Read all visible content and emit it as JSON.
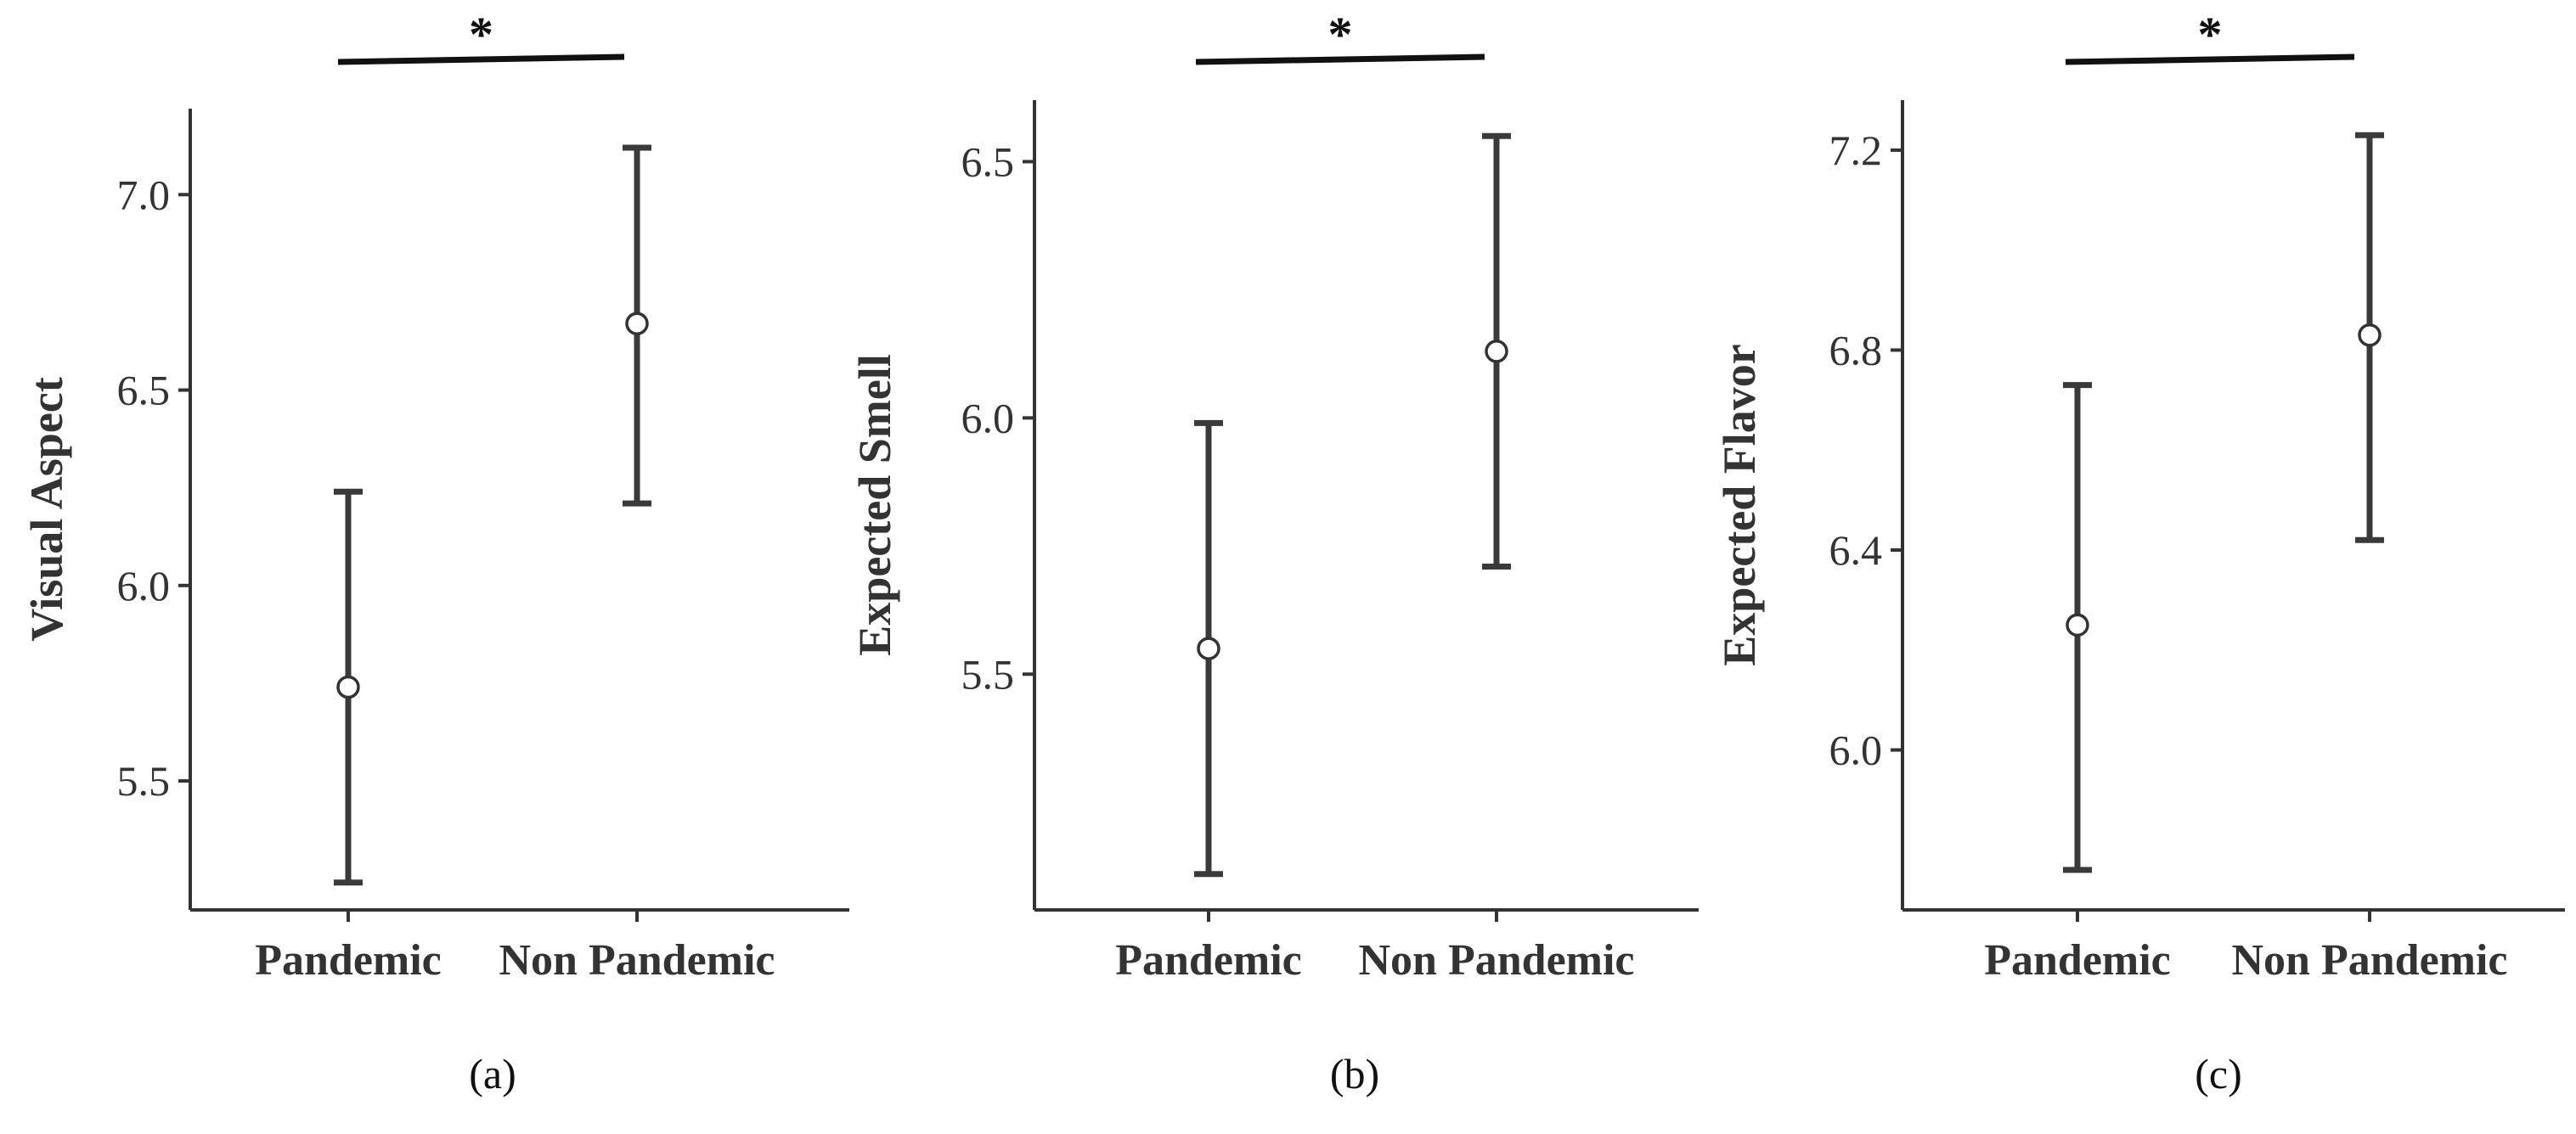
{
  "chart_data": [
    {
      "type": "errorbar",
      "panel": "(a)",
      "ylabel": "Visual Aspect",
      "categories": [
        "Pandemic",
        "Non Pandemic"
      ],
      "means": [
        5.74,
        6.67
      ],
      "lower": [
        5.24,
        6.21
      ],
      "upper": [
        6.24,
        7.12
      ],
      "yticks": [
        "5.5",
        "6.0",
        "6.5",
        "7.0"
      ],
      "ytick_values": [
        5.5,
        6.0,
        6.5,
        7.0
      ],
      "ylim": [
        5.17,
        7.22
      ],
      "significance": "*"
    },
    {
      "type": "errorbar",
      "panel": "(b)",
      "ylabel": "Expected Smell",
      "categories": [
        "Pandemic",
        "Non Pandemic"
      ],
      "means": [
        5.55,
        6.13
      ],
      "lower": [
        5.11,
        5.71
      ],
      "upper": [
        5.99,
        6.55
      ],
      "yticks": [
        "5.5",
        "6.0",
        "6.5"
      ],
      "ytick_values": [
        5.5,
        6.0,
        6.5
      ],
      "ylim": [
        5.04,
        6.62
      ],
      "significance": "*"
    },
    {
      "type": "errorbar",
      "panel": "(c)",
      "ylabel": "Expected Flavor",
      "categories": [
        "Pandemic",
        "Non Pandemic"
      ],
      "means": [
        6.25,
        6.83
      ],
      "lower": [
        5.76,
        6.42
      ],
      "upper": [
        6.73,
        7.23
      ],
      "yticks": [
        "6.0",
        "6.4",
        "6.8",
        "7.2"
      ],
      "ytick_values": [
        6.0,
        6.4,
        6.8,
        7.2
      ],
      "ylim": [
        5.68,
        7.3
      ],
      "significance": "*"
    }
  ],
  "colors": {
    "axis": "#333333",
    "errorbar": "#3a3a3a",
    "marker_fill": "#ffffff",
    "marker_stroke": "#333333",
    "significance_bar": "#111111"
  }
}
